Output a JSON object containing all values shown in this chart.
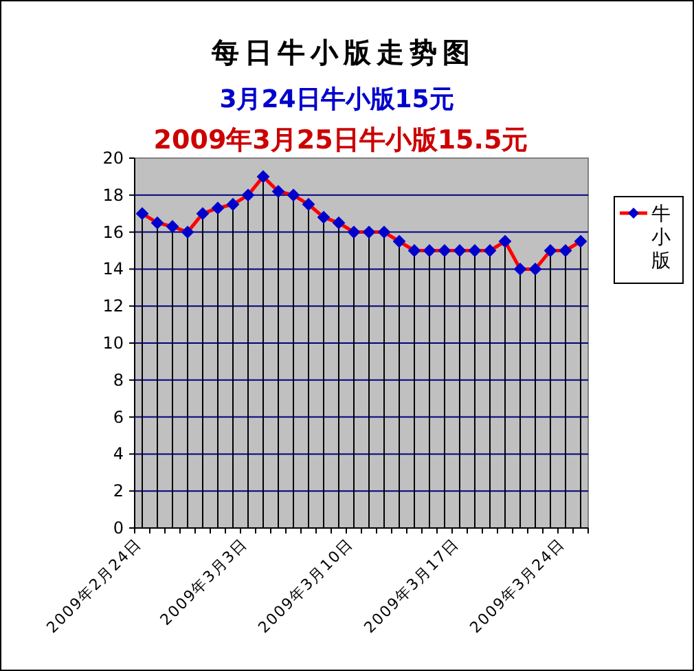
{
  "chart_data": {
    "type": "line",
    "title": "每日牛小版走势图",
    "subtitle": "3月24日牛小版15元",
    "annotations": [
      "2009年3月25日牛小版15.5元"
    ],
    "categories": [
      "2009年2月24日",
      null,
      null,
      null,
      null,
      null,
      null,
      "2009年3月3日",
      null,
      null,
      null,
      null,
      null,
      null,
      "2009年3月10日",
      null,
      null,
      null,
      null,
      null,
      null,
      "2009年3月17日",
      null,
      null,
      null,
      null,
      null,
      null,
      "2009年3月24日",
      null
    ],
    "series": [
      {
        "name": "牛小版",
        "color": "#ff0000",
        "values": [
          17,
          16.5,
          16.3,
          16,
          17,
          17.3,
          17.5,
          18,
          19,
          18.2,
          18,
          17.5,
          16.8,
          16.5,
          16,
          16,
          16,
          15.5,
          15,
          15,
          15,
          15,
          15,
          15,
          15.5,
          14,
          14,
          15,
          15,
          15.5
        ]
      }
    ],
    "ylim": [
      0,
      20
    ],
    "yticks": [
      0,
      2,
      4,
      6,
      8,
      10,
      12,
      14,
      16,
      18,
      20
    ],
    "grid": true,
    "legend": "right",
    "marker": "diamond",
    "line_style": "solid"
  }
}
